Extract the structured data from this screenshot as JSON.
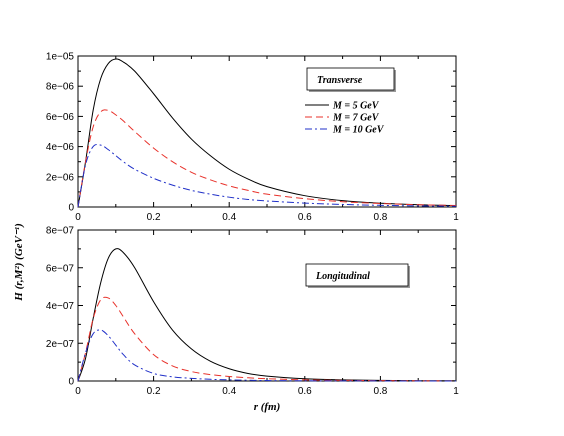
{
  "shared": {
    "ylabel": "H (r,M²) (GeV⁻¹)",
    "xlabel": "r (fm)"
  },
  "chart_data": [
    {
      "type": "line",
      "panel": "top",
      "xlim": [
        0,
        1
      ],
      "ylim": [
        0,
        1e-05
      ],
      "x_ticks": [
        0,
        0.2,
        0.4,
        0.6,
        0.8,
        1
      ],
      "x_tick_labels": [
        "0",
        "0.2",
        "0.4",
        "0.6",
        "0.8",
        "1"
      ],
      "y_ticks": [
        0,
        2e-06,
        4e-06,
        6e-06,
        8e-06,
        1e-05
      ],
      "y_tick_labels": [
        "0",
        "2e−06",
        "4e−06",
        "6e−06",
        "8e−06",
        "1e−05"
      ],
      "annotation": "Transverse",
      "legend_position": "top-right",
      "series": [
        {
          "name": "M = 5 GeV",
          "color": "#000000",
          "dash": "solid",
          "x": [
            0,
            0.02,
            0.04,
            0.06,
            0.08,
            0.1,
            0.12,
            0.15,
            0.2,
            0.25,
            0.3,
            0.35,
            0.4,
            0.45,
            0.5,
            0.6,
            0.7,
            0.8,
            0.9,
            1.0
          ],
          "y": [
            0,
            3e-06,
            6.4e-06,
            8.5e-06,
            9.5e-06,
            9.8e-06,
            9.6e-06,
            9e-06,
            7.5e-06,
            5.9e-06,
            4.5e-06,
            3.4e-06,
            2.5e-06,
            1.85e-06,
            1.35e-06,
            7.5e-07,
            4.2e-07,
            2.5e-07,
            1.5e-07,
            9e-08
          ]
        },
        {
          "name": "M = 7 GeV",
          "color": "#e8322b",
          "dash": "dashed",
          "x": [
            0,
            0.02,
            0.04,
            0.06,
            0.08,
            0.1,
            0.12,
            0.15,
            0.2,
            0.25,
            0.3,
            0.35,
            0.4,
            0.45,
            0.5,
            0.6,
            0.7,
            0.8,
            0.9,
            1.0
          ],
          "y": [
            0,
            3e-06,
            5.3e-06,
            6.3e-06,
            6.4e-06,
            6.1e-06,
            5.7e-06,
            5e-06,
            3.9e-06,
            3e-06,
            2.3e-06,
            1.8e-06,
            1.4e-06,
            1.1e-06,
            8.5e-07,
            5.5e-07,
            3.5e-07,
            2.3e-07,
            1.5e-07,
            1e-07
          ]
        },
        {
          "name": "M = 10 GeV",
          "color": "#2030c8",
          "dash": "dashdot",
          "x": [
            0,
            0.02,
            0.04,
            0.06,
            0.08,
            0.1,
            0.12,
            0.15,
            0.2,
            0.25,
            0.3,
            0.35,
            0.4,
            0.45,
            0.5,
            0.6,
            0.7,
            0.8,
            0.9,
            1.0
          ],
          "y": [
            0,
            2.8e-06,
            4e-06,
            4.1e-06,
            3.8e-06,
            3.4e-06,
            3e-06,
            2.5e-06,
            1.9e-06,
            1.45e-06,
            1.1e-06,
            8.5e-07,
            6.5e-07,
            5e-07,
            4e-07,
            2.6e-07,
            1.7e-07,
            1.1e-07,
            7e-08,
            5e-08
          ]
        }
      ]
    },
    {
      "type": "line",
      "panel": "bottom",
      "xlim": [
        0,
        1
      ],
      "ylim": [
        0,
        8e-07
      ],
      "x_ticks": [
        0,
        0.2,
        0.4,
        0.6,
        0.8,
        1
      ],
      "x_tick_labels": [
        "0",
        "0.2",
        "0.4",
        "0.6",
        "0.8",
        "1"
      ],
      "y_ticks": [
        0,
        2e-07,
        4e-07,
        6e-07,
        8e-07
      ],
      "y_tick_labels": [
        "0",
        "2e−07",
        "4e−07",
        "6e−07",
        "8e−07"
      ],
      "annotation": "Longitudinal",
      "series": [
        {
          "color": "#000000",
          "dash": "solid",
          "x": [
            0,
            0.02,
            0.04,
            0.06,
            0.08,
            0.1,
            0.12,
            0.15,
            0.2,
            0.25,
            0.3,
            0.35,
            0.4,
            0.45,
            0.5,
            0.6,
            0.7,
            0.8,
            0.9,
            1.0
          ],
          "y": [
            0,
            1.2e-07,
            3.3e-07,
            5.2e-07,
            6.5e-07,
            7e-07,
            6.8e-07,
            6e-07,
            4.2e-07,
            2.7e-07,
            1.7e-07,
            1.05e-07,
            6.5e-08,
            4e-08,
            2.6e-08,
            1.2e-08,
            6e-09,
            3e-09,
            1.5e-09,
            1e-09
          ]
        },
        {
          "color": "#e8322b",
          "dash": "dashed",
          "x": [
            0,
            0.02,
            0.04,
            0.06,
            0.08,
            0.1,
            0.12,
            0.15,
            0.2,
            0.25,
            0.3,
            0.35,
            0.4,
            0.45,
            0.5,
            0.6,
            0.7,
            0.8,
            0.9,
            1.0
          ],
          "y": [
            0,
            1.5e-07,
            3.3e-07,
            4.3e-07,
            4.4e-07,
            4e-07,
            3.4e-07,
            2.5e-07,
            1.4e-07,
            8e-08,
            5e-08,
            3.4e-08,
            2.4e-08,
            1.7e-08,
            1.2e-08,
            6e-09,
            3.5e-09,
            2e-09,
            1e-09,
            5e-10
          ]
        },
        {
          "color": "#2030c8",
          "dash": "dashdot",
          "x": [
            0,
            0.02,
            0.04,
            0.06,
            0.08,
            0.1,
            0.12,
            0.15,
            0.2,
            0.25,
            0.3,
            0.35,
            0.4,
            0.45,
            0.5,
            0.6,
            0.7,
            0.8,
            0.9,
            1.0
          ],
          "y": [
            0,
            1.5e-07,
            2.5e-07,
            2.7e-07,
            2.4e-07,
            1.9e-07,
            1.4e-07,
            8.5e-08,
            4e-08,
            2.2e-08,
            1.4e-08,
            9e-09,
            6e-09,
            4e-09,
            2.5e-09,
            1.2e-09,
            6e-10,
            3e-10,
            1.5e-10,
            1e-10
          ]
        }
      ]
    }
  ]
}
